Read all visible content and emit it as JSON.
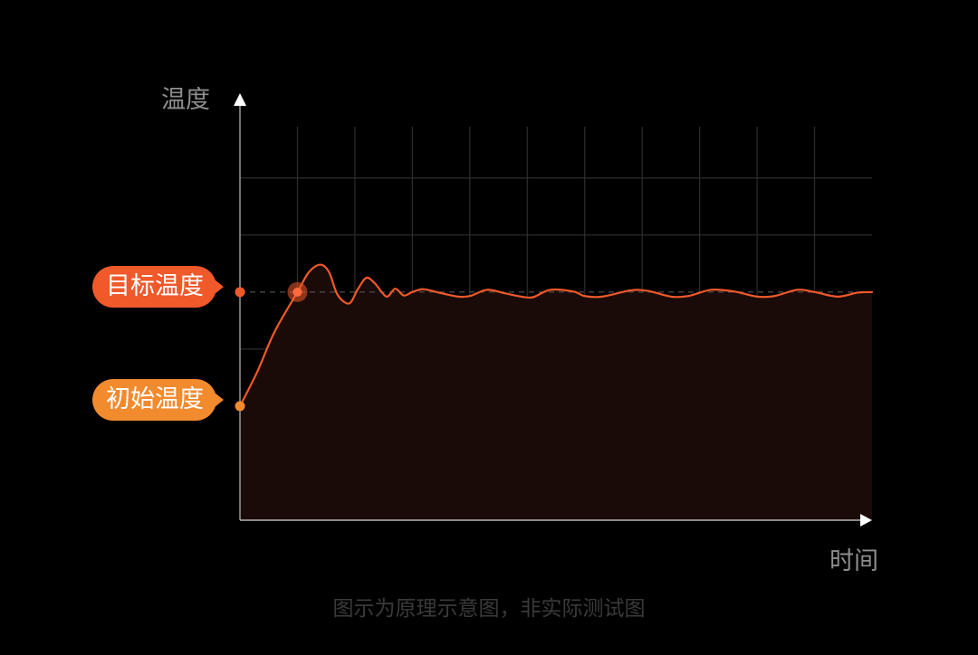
{
  "colors": {
    "background": "#000000",
    "grid": "#2d2d2d",
    "axis": "#ffffff",
    "curve": "#f0592a",
    "area_fill": "#1a0b08",
    "target_marker": "#f0592a",
    "initial_marker": "#f28a2e",
    "target_tag": "#f0592a",
    "initial_tag": "#f28a2e",
    "label_text": "#8e8e8e",
    "caption_text": "#3a3a3a"
  },
  "chart_data": {
    "type": "line",
    "ylabel": "温度",
    "xlabel": "时间",
    "target_label": "目标温度",
    "initial_label": "初始温度",
    "caption": "图示为原理示意图，非实际测试图",
    "grid": true,
    "area_fill": true,
    "target_value": 4,
    "initial_value": 2,
    "xlim": [
      0,
      11
    ],
    "ylim": [
      0,
      6.9
    ],
    "x": [
      0,
      0.3,
      0.6,
      1.0,
      1.2,
      1.4,
      1.55,
      1.7,
      1.9,
      2.05,
      2.2,
      2.35,
      2.55,
      2.7,
      2.85,
      3.0,
      3.2,
      3.5,
      3.8,
      4.0,
      4.3,
      4.6,
      4.9,
      5.1,
      5.4,
      5.8,
      6.0,
      6.3,
      6.8,
      7.1,
      7.5,
      7.8,
      8.2,
      8.6,
      9.0,
      9.3,
      9.7,
      10.0,
      10.4,
      10.75,
      11.0
    ],
    "y": [
      2.0,
      2.6,
      3.3,
      4.0,
      4.35,
      4.48,
      4.35,
      3.95,
      3.8,
      4.05,
      4.25,
      4.15,
      3.92,
      4.06,
      3.94,
      4.0,
      4.05,
      3.98,
      3.92,
      3.93,
      4.04,
      3.98,
      3.92,
      3.91,
      4.04,
      4.01,
      3.93,
      3.92,
      4.03,
      4.02,
      3.92,
      3.93,
      4.04,
      4.01,
      3.92,
      3.93,
      4.04,
      4.0,
      3.92,
      3.99,
      4.0
    ]
  }
}
